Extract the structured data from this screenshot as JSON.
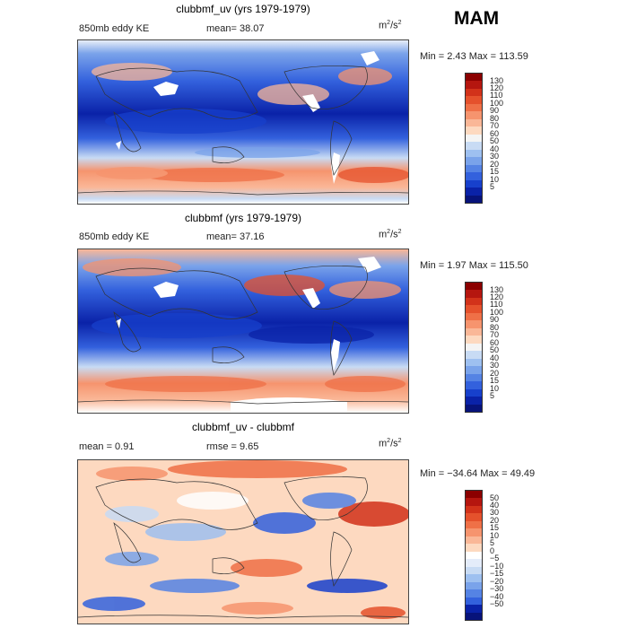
{
  "season": "MAM",
  "panels": [
    {
      "title": "clubbmf_uv (yrs 1979-1979)",
      "left_label": "850mb eddy KE",
      "center_label": "mean=  38.07",
      "units_base": "m",
      "units_sup1": "2",
      "units_mid": "/s",
      "units_sup2": "2",
      "minmax": "Min =    2.43 Max = 113.59",
      "levels": [
        "130",
        "120",
        "110",
        "100",
        "90",
        "80",
        "70",
        "60",
        "50",
        "40",
        "30",
        "20",
        "15",
        "10",
        "5"
      ],
      "colors": [
        "#8b0000",
        "#b5160f",
        "#d2321a",
        "#e5512c",
        "#ef7047",
        "#f6946e",
        "#fab797",
        "#fdd9c0",
        "#f4f4f4",
        "#c8dbf4",
        "#9ec0f0",
        "#7aa3ea",
        "#5583e4",
        "#3361dd",
        "#1740cc",
        "#0a22a8",
        "#07137a"
      ]
    },
    {
      "title": "clubbmf (yrs 1979-1979)",
      "left_label": "850mb eddy KE",
      "center_label": "mean=  37.16",
      "units_base": "m",
      "units_sup1": "2",
      "units_mid": "/s",
      "units_sup2": "2",
      "minmax": "Min =    1.97 Max = 115.50",
      "levels": [
        "130",
        "120",
        "110",
        "100",
        "90",
        "80",
        "70",
        "60",
        "50",
        "40",
        "30",
        "20",
        "15",
        "10",
        "5"
      ],
      "colors": [
        "#8b0000",
        "#b5160f",
        "#d2321a",
        "#e5512c",
        "#ef7047",
        "#f6946e",
        "#fab797",
        "#fdd9c0",
        "#f4f4f4",
        "#c8dbf4",
        "#9ec0f0",
        "#7aa3ea",
        "#5583e4",
        "#3361dd",
        "#1740cc",
        "#0a22a8",
        "#07137a"
      ]
    },
    {
      "title": "clubbmf_uv - clubbmf",
      "left_label": "mean =    0.91",
      "center_label": "rmse =    9.65",
      "units_base": "m",
      "units_sup1": "2",
      "units_mid": "/s",
      "units_sup2": "2",
      "minmax": "Min = −34.64  Max =   49.49",
      "levels": [
        "50",
        "40",
        "30",
        "20",
        "15",
        "10",
        "5",
        "0",
        "−5",
        "−10",
        "−15",
        "−20",
        "−30",
        "−40",
        "−50"
      ],
      "colors": [
        "#8b0000",
        "#b5160f",
        "#d2321a",
        "#e5512c",
        "#ef7047",
        "#f6946e",
        "#fab797",
        "#fdd9c0",
        "#ffffff",
        "#e4ecfa",
        "#c8dbf4",
        "#9ec0f0",
        "#7aa3ea",
        "#5583e4",
        "#3361dd",
        "#0a22a8",
        "#07137a"
      ]
    }
  ]
}
